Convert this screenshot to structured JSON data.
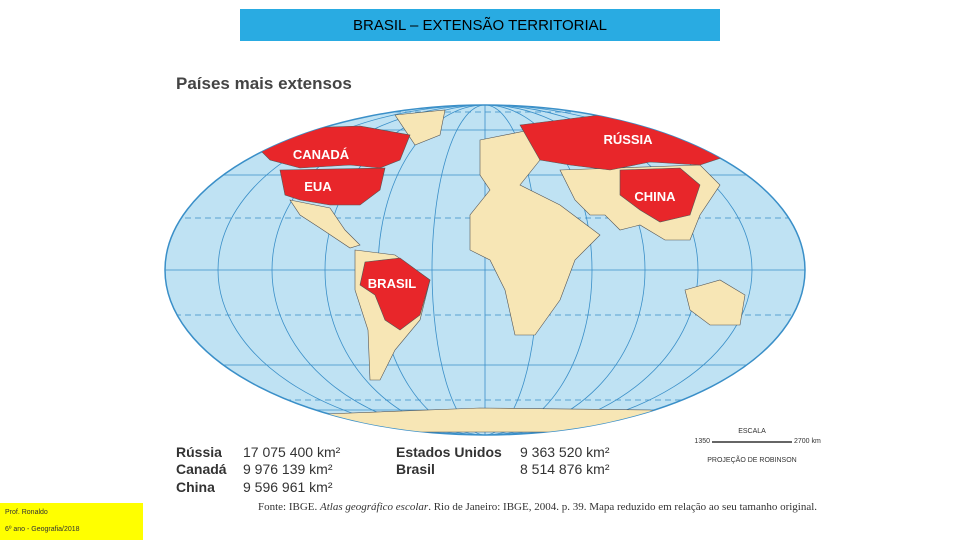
{
  "header": {
    "title": "BRASIL – EXTENSÃO TERRITORIAL"
  },
  "map": {
    "title": "Países mais extensos",
    "labels": [
      "CANADÁ",
      "EUA",
      "RÚSSIA",
      "CHINA",
      "BRASIL"
    ],
    "scale": {
      "title": "ESCALA",
      "ticks": [
        "1350",
        "2700 km"
      ],
      "projection": "PROJEÇÃO DE ROBINSON"
    }
  },
  "table": {
    "left": [
      [
        "Rússia",
        "17 075 400 km²"
      ],
      [
        "Canadá",
        "9 976 139 km²"
      ],
      [
        "China",
        "9 596 961 km²"
      ]
    ],
    "right": [
      [
        "Estados Unidos",
        "9 363 520 km²"
      ],
      [
        "Brasil",
        "8 514 876 km²"
      ]
    ]
  },
  "source": [
    "Fonte: IBGE. ",
    "Atlas geográfico escolar",
    ". Rio de Janeiro: IBGE, 2004. p. 39. Mapa reduzido em relação ao seu tamanho original."
  ],
  "footer": {
    "lines": [
      "Prof. Ronaldo",
      "6º ano - Geografia/2018"
    ]
  }
}
